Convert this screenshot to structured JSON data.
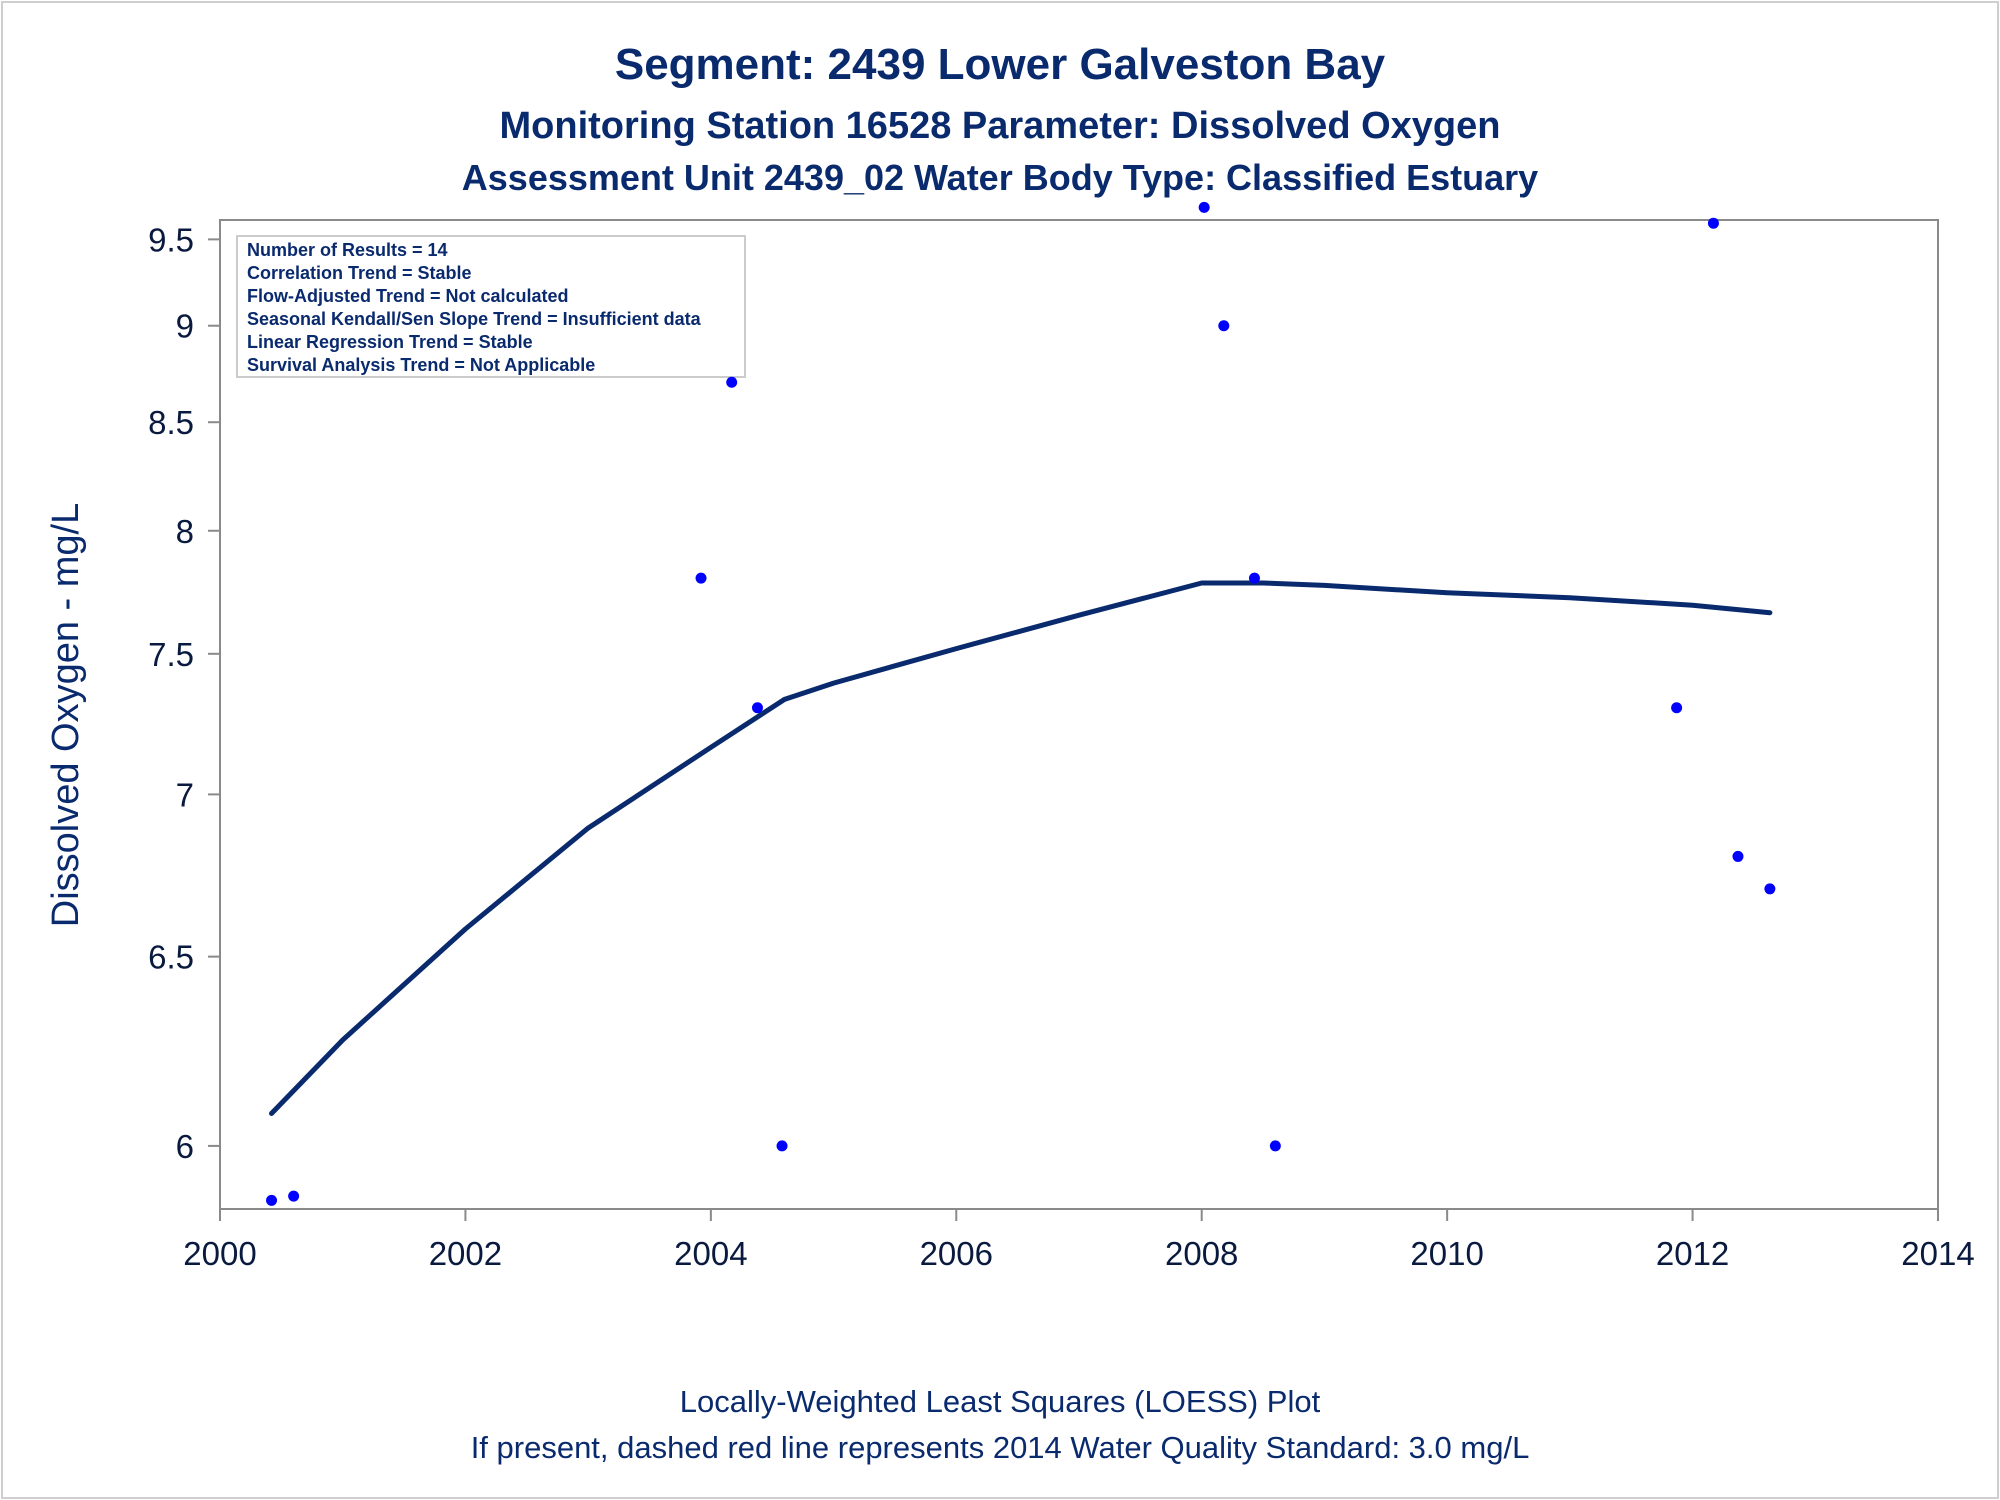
{
  "chart_data": {
    "type": "scatter",
    "title": "Segment: 2439  Lower Galveston Bay",
    "subtitle": "Monitoring Station 16528 Parameter: Dissolved Oxygen",
    "subtitle2": "Assessment Unit 2439_02   Water Body Type: Classified Estuary",
    "ylabel": "Dissolved Oxygen - mg/L",
    "footnote1": "Locally-Weighted Least Squares (LOESS) Plot",
    "footnote2": "If present, dashed red line represents 2014 Water Quality Standard: 3.0 mg/L",
    "xlim": [
      2000,
      2014
    ],
    "ylim": [
      5.85,
      9.62
    ],
    "y_scale": "reciprocal",
    "x_ticks": [
      "2000",
      "2002",
      "2004",
      "2006",
      "2008",
      "2010",
      "2012",
      "2014"
    ],
    "y_ticks": [
      "6",
      "6.5",
      "7",
      "7.5",
      "8",
      "8.5",
      "9",
      "9.5"
    ],
    "grid": false,
    "stats_box": [
      "Number of Results = 14",
      "Correlation Trend = Stable",
      "Flow-Adjusted Trend = Not calculated",
      "Seasonal Kendall/Sen Slope Trend = Insufficient data",
      "Linear Regression Trend = Stable",
      "Survival Analysis Trend = Not Applicable"
    ],
    "points": [
      {
        "x": 2000.42,
        "y": 5.87
      },
      {
        "x": 2000.6,
        "y": 5.88
      },
      {
        "x": 2003.92,
        "y": 7.8
      },
      {
        "x": 2004.17,
        "y": 8.7
      },
      {
        "x": 2004.38,
        "y": 7.3
      },
      {
        "x": 2004.58,
        "y": 6.0
      },
      {
        "x": 2008.02,
        "y": 9.7
      },
      {
        "x": 2008.18,
        "y": 9.0
      },
      {
        "x": 2008.43,
        "y": 7.8
      },
      {
        "x": 2008.6,
        "y": 6.0
      },
      {
        "x": 2011.87,
        "y": 7.3
      },
      {
        "x": 2012.17,
        "y": 9.6
      },
      {
        "x": 2012.37,
        "y": 6.8
      },
      {
        "x": 2012.63,
        "y": 6.7
      }
    ],
    "loess": [
      {
        "x": 2000.42,
        "y": 6.08
      },
      {
        "x": 2001.0,
        "y": 6.27
      },
      {
        "x": 2002.0,
        "y": 6.58
      },
      {
        "x": 2003.0,
        "y": 6.89
      },
      {
        "x": 2004.0,
        "y": 7.16
      },
      {
        "x": 2004.6,
        "y": 7.33
      },
      {
        "x": 2005.0,
        "y": 7.39
      },
      {
        "x": 2006.0,
        "y": 7.52
      },
      {
        "x": 2007.0,
        "y": 7.65
      },
      {
        "x": 2008.0,
        "y": 7.78
      },
      {
        "x": 2008.5,
        "y": 7.78
      },
      {
        "x": 2009.0,
        "y": 7.77
      },
      {
        "x": 2010.0,
        "y": 7.74
      },
      {
        "x": 2011.0,
        "y": 7.72
      },
      {
        "x": 2012.0,
        "y": 7.69
      },
      {
        "x": 2012.63,
        "y": 7.66
      }
    ],
    "colors": {
      "text": "#0a2a6e",
      "tick_text": "#0a1a3f",
      "axis": "#8a8a8a",
      "points": "#0000ff",
      "loess": "#0a2a6e"
    }
  }
}
